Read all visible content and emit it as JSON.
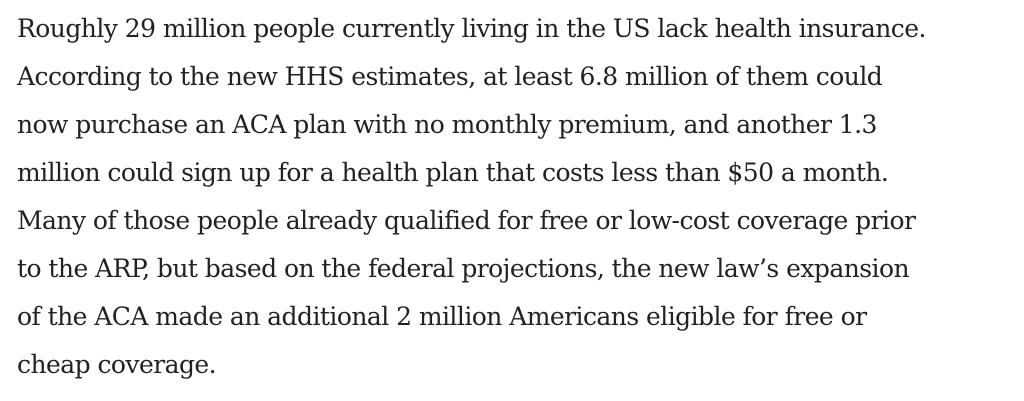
{
  "article": {
    "paragraph_lines": [
      "Roughly 29 million people currently living in the US lack health insurance.",
      "According to the new HHS estimates, at least 6.8 million of them could",
      "now purchase an ACA plan with no monthly premium, and another 1.3",
      "million could sign up for a health plan that costs less than $50 a month.",
      "Many of those people already qualified for free or low-cost coverage prior",
      "to the ARP, but based on the federal projections, the new law’s expansion",
      "of the ACA made an additional 2 million Americans eligible for free or",
      "cheap coverage."
    ]
  }
}
